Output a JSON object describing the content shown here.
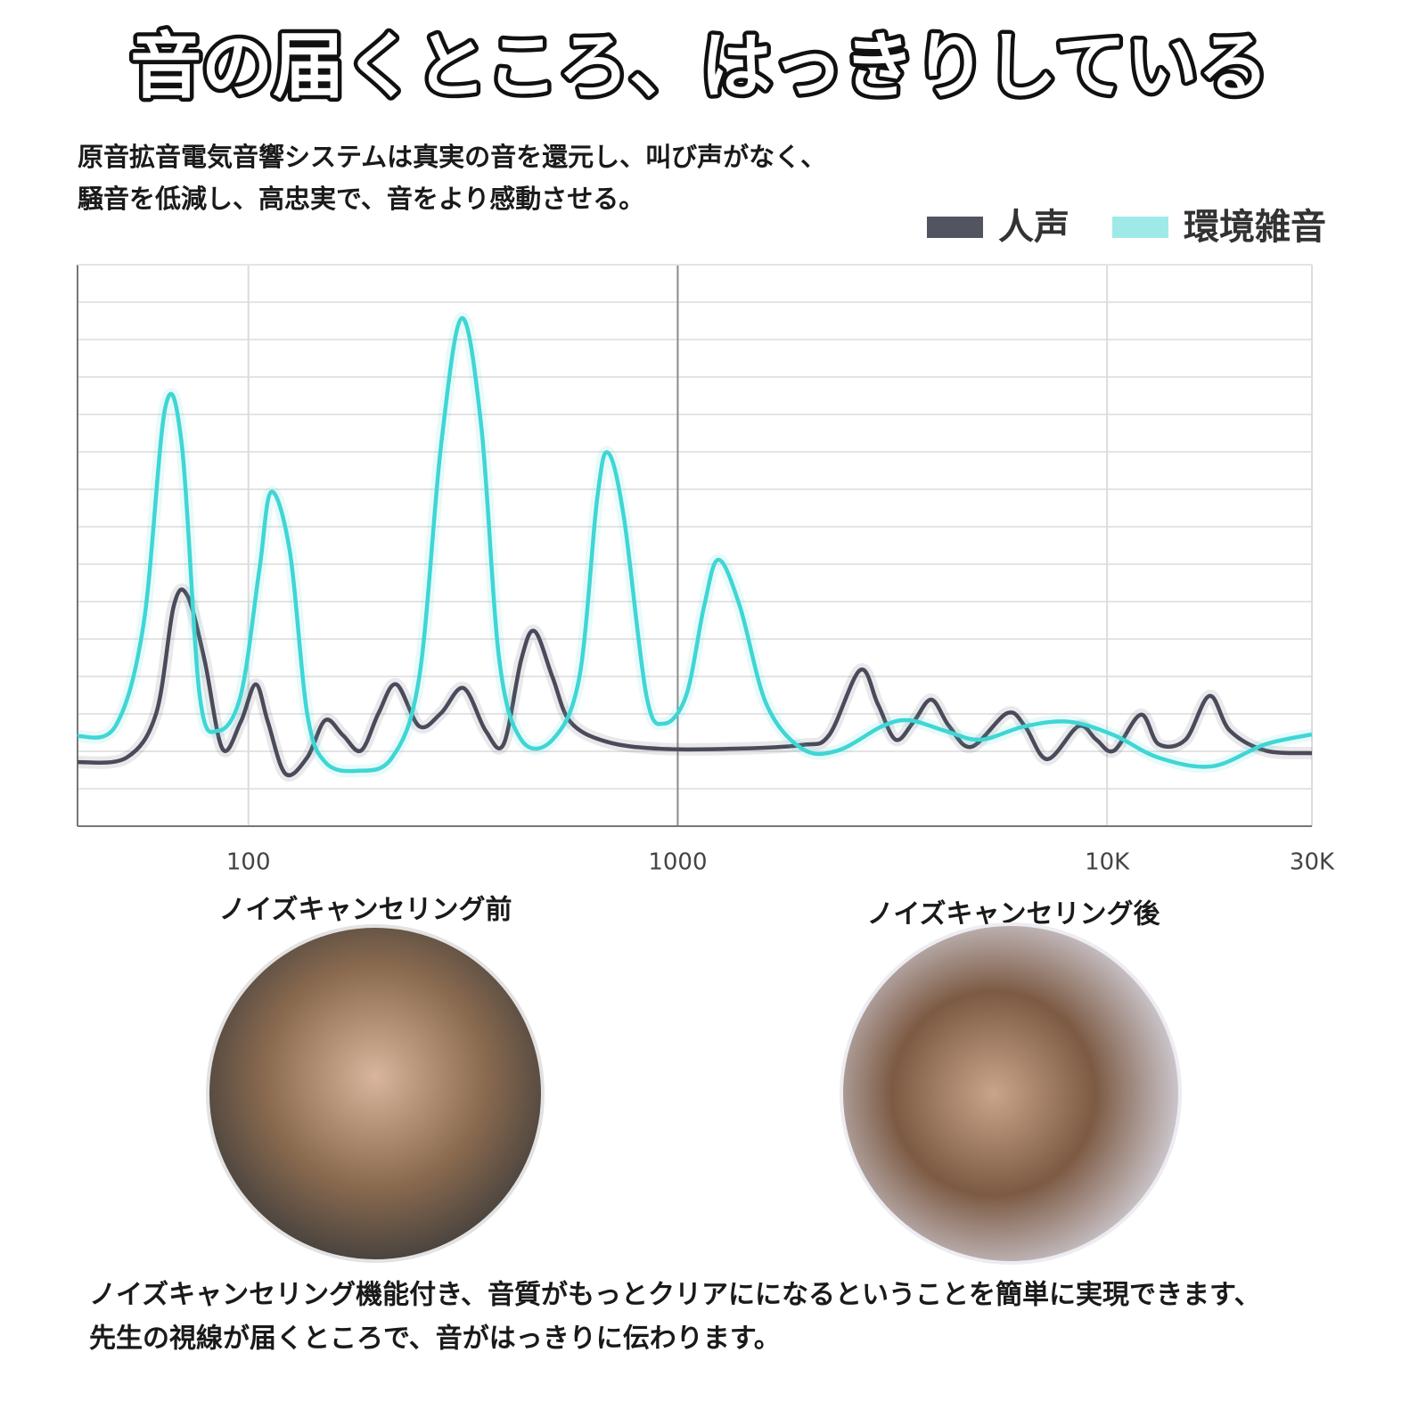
{
  "header": {
    "title": "音の届くところ、はっきりしている",
    "description": [
      "原音拡音電気音響システムは真実の音を還元し、叫び声がなく、",
      "騒音を低減し、高忠実で、音をより感動させる。"
    ]
  },
  "chart_data": {
    "type": "line",
    "x_scale": "log",
    "grid": true,
    "legend": "top-right",
    "xlim": [
      40,
      30000
    ],
    "ylim": [
      0,
      15
    ],
    "xticks": [
      100,
      1000,
      {
        "value": 10000,
        "label": "10K"
      },
      {
        "value": 30000,
        "label": "30K"
      }
    ],
    "series": [
      {
        "name": "人声",
        "color": "#4a4b5a",
        "x": [
          40,
          52,
          61,
          67,
          72,
          79,
          87,
          96,
          104,
          111,
          122,
          137,
          151,
          166,
          183,
          201,
          221,
          250,
          281,
          317,
          357,
          393,
          432,
          464,
          511,
          562,
          681,
          907,
          1368,
          1947,
          2251,
          2659,
          2925,
          3218,
          3543,
          3897,
          4288,
          4831,
          5853,
          6438,
          7257,
          8577,
          9441,
          10383,
          11985,
          13186,
          15225,
          17320,
          19330,
          23400,
          30000
        ],
        "values": [
          1.71,
          1.83,
          3.02,
          5.88,
          6.17,
          4.45,
          2.07,
          2.79,
          3.79,
          2.79,
          1.4,
          1.83,
          2.83,
          2.43,
          2.02,
          3.02,
          3.79,
          2.67,
          3.02,
          3.69,
          2.55,
          2.19,
          4.45,
          5.21,
          3.98,
          2.79,
          2.26,
          2.07,
          2.07,
          2.17,
          2.43,
          4.17,
          3.26,
          2.31,
          2.79,
          3.38,
          2.67,
          2.12,
          3.02,
          2.67,
          1.79,
          2.67,
          2.31,
          2.02,
          2.98,
          2.19,
          2.31,
          3.48,
          2.55,
          2.02,
          1.95
        ]
      },
      {
        "name": "環境雑音",
        "color": "#3fd6d4",
        "x": [
          40,
          49,
          57,
          64,
          70,
          77,
          85,
          96,
          106,
          113,
          125,
          137,
          151,
          179,
          216,
          250,
          281,
          314,
          349,
          384,
          432,
          511,
          590,
          649,
          688,
          749,
          845,
          929,
          1047,
          1152,
          1244,
          1395,
          1609,
          1947,
          2359,
          2995,
          3459,
          4187,
          5069,
          6438,
          8176,
          10383,
          13186,
          17567,
          23400,
          30000
        ],
        "values": [
          2.4,
          2.67,
          5.4,
          11.17,
          10.17,
          3.5,
          2.55,
          3.5,
          6.83,
          8.93,
          7.31,
          3.02,
          1.71,
          1.48,
          1.83,
          3.98,
          10.17,
          13.57,
          10.64,
          4.45,
          2.31,
          2.31,
          3.98,
          8.74,
          9.98,
          8.26,
          3.5,
          2.74,
          3.5,
          5.88,
          7.12,
          5.88,
          3.26,
          2.07,
          2.02,
          2.67,
          2.83,
          2.55,
          2.31,
          2.67,
          2.79,
          2.43,
          1.83,
          1.6,
          2.19,
          2.45
        ]
      }
    ]
  },
  "captions": {
    "before": "ノイズキャンセリング前",
    "after": "ノイズキャンセリング後"
  },
  "footer": [
    "ノイズキャンセリング機能付き、音質がもっとクリアにになるということを簡単に実現できます、",
    "先生の視線が届くところで、音がはっきりに伝わります。"
  ]
}
